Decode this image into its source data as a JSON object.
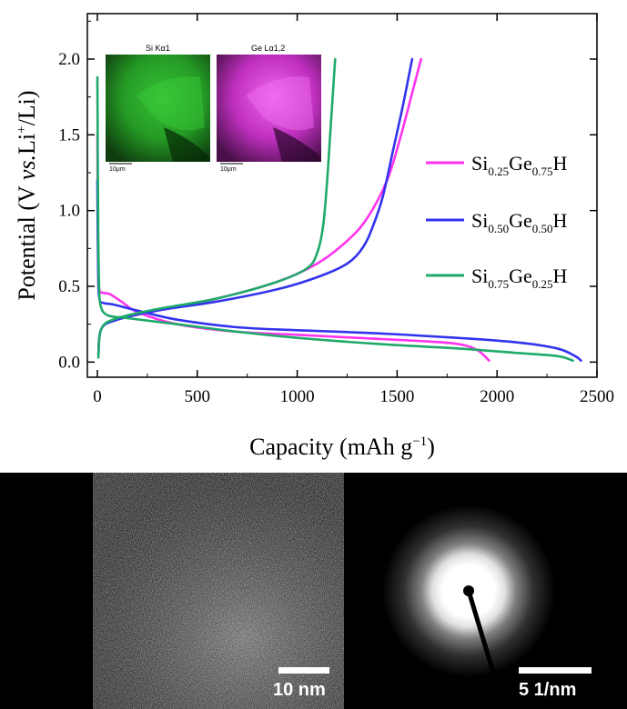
{
  "chart_data": {
    "type": "line",
    "xlabel": "Capacity (mAh g⁻¹)",
    "ylabel": "Potential (V vs.Li⁺/Li)",
    "ylabel_parts": {
      "pre": "Potential (V ",
      "italic": "vs.",
      "mid": "Li",
      "sup": "+",
      "post": "/Li)"
    },
    "xlabel_parts": {
      "pre": "Capacity (mAh g",
      "sup": "−1",
      "post": ")"
    },
    "xlim": [
      -50,
      2500
    ],
    "ylim": [
      -0.1,
      2.3
    ],
    "x_ticks": [
      0,
      500,
      1000,
      1500,
      2000,
      2500
    ],
    "y_ticks": [
      0.0,
      0.5,
      1.0,
      1.5,
      2.0
    ],
    "x_tick_labels": [
      "0",
      "500",
      "1000",
      "1500",
      "2000",
      "2500"
    ],
    "y_tick_labels": [
      "0.0",
      "0.5",
      "1.0",
      "1.5",
      "2.0"
    ],
    "legend_position": "right",
    "series": [
      {
        "name": "Si0.25Ge0.75H",
        "label_parts": [
          "Si",
          "0.25",
          "Ge",
          "0.75",
          "H"
        ],
        "color": "#ff33ee",
        "discharge": [
          [
            0,
            1.5
          ],
          [
            2,
            1.0
          ],
          [
            4,
            0.7
          ],
          [
            8,
            0.5
          ],
          [
            20,
            0.46
          ],
          [
            60,
            0.45
          ],
          [
            120,
            0.4
          ],
          [
            200,
            0.33
          ],
          [
            400,
            0.25
          ],
          [
            700,
            0.2
          ],
          [
            1000,
            0.18
          ],
          [
            1300,
            0.16
          ],
          [
            1600,
            0.14
          ],
          [
            1800,
            0.12
          ],
          [
            1900,
            0.08
          ],
          [
            1960,
            0.01
          ]
        ],
        "charge": [
          [
            5,
            0.05
          ],
          [
            20,
            0.22
          ],
          [
            100,
            0.28
          ],
          [
            300,
            0.34
          ],
          [
            600,
            0.42
          ],
          [
            900,
            0.53
          ],
          [
            1100,
            0.65
          ],
          [
            1250,
            0.8
          ],
          [
            1350,
            0.95
          ],
          [
            1450,
            1.2
          ],
          [
            1520,
            1.5
          ],
          [
            1580,
            1.8
          ],
          [
            1620,
            2.0
          ]
        ]
      },
      {
        "name": "Si0.50Ge0.50H",
        "label_parts": [
          "Si",
          "0.50",
          "Ge",
          "0.50",
          "H"
        ],
        "color": "#3333ee",
        "discharge": [
          [
            0,
            1.2
          ],
          [
            4,
            0.6
          ],
          [
            10,
            0.42
          ],
          [
            30,
            0.39
          ],
          [
            80,
            0.38
          ],
          [
            200,
            0.34
          ],
          [
            400,
            0.28
          ],
          [
            700,
            0.23
          ],
          [
            1000,
            0.21
          ],
          [
            1400,
            0.19
          ],
          [
            1800,
            0.16
          ],
          [
            2100,
            0.13
          ],
          [
            2300,
            0.09
          ],
          [
            2390,
            0.04
          ],
          [
            2420,
            0.01
          ]
        ],
        "charge": [
          [
            5,
            0.05
          ],
          [
            20,
            0.22
          ],
          [
            100,
            0.28
          ],
          [
            300,
            0.34
          ],
          [
            600,
            0.4
          ],
          [
            900,
            0.48
          ],
          [
            1100,
            0.56
          ],
          [
            1250,
            0.65
          ],
          [
            1330,
            0.76
          ],
          [
            1380,
            0.9
          ],
          [
            1430,
            1.1
          ],
          [
            1480,
            1.4
          ],
          [
            1530,
            1.7
          ],
          [
            1575,
            2.0
          ]
        ]
      },
      {
        "name": "Si0.75Ge0.25H",
        "label_parts": [
          "Si",
          "0.75",
          "Ge",
          "0.25",
          "H"
        ],
        "color": "#1faa6a",
        "discharge": [
          [
            0,
            1.88
          ],
          [
            2,
            1.4
          ],
          [
            4,
            0.9
          ],
          [
            8,
            0.55
          ],
          [
            15,
            0.38
          ],
          [
            50,
            0.31
          ],
          [
            150,
            0.29
          ],
          [
            400,
            0.25
          ],
          [
            700,
            0.2
          ],
          [
            1000,
            0.16
          ],
          [
            1400,
            0.12
          ],
          [
            1800,
            0.09
          ],
          [
            2100,
            0.06
          ],
          [
            2300,
            0.04
          ],
          [
            2380,
            0.01
          ]
        ],
        "charge": [
          [
            5,
            0.03
          ],
          [
            20,
            0.22
          ],
          [
            100,
            0.29
          ],
          [
            300,
            0.35
          ],
          [
            600,
            0.42
          ],
          [
            900,
            0.53
          ],
          [
            1050,
            0.62
          ],
          [
            1100,
            0.72
          ],
          [
            1130,
            0.9
          ],
          [
            1150,
            1.2
          ],
          [
            1165,
            1.5
          ],
          [
            1180,
            1.8
          ],
          [
            1190,
            2.0
          ]
        ]
      }
    ]
  },
  "inset_maps": [
    {
      "label": "Si Kα1",
      "scale_label": "10μm",
      "color": "#22b822"
    },
    {
      "label": "Ge Lα1,2",
      "scale_label": "10μm",
      "color": "#e040e0"
    }
  ],
  "tem": {
    "scale_label": "10 nm"
  },
  "saed": {
    "scale_label": "5 1/nm"
  }
}
